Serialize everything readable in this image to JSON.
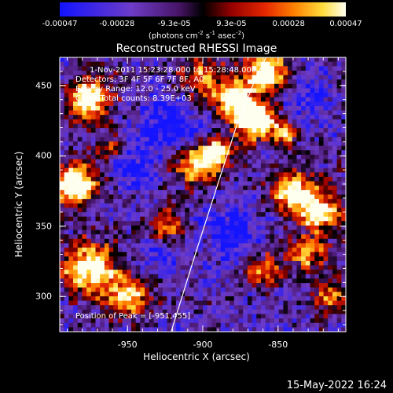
{
  "colorbar": {
    "ticks": [
      "-0.00047",
      "-0.00028",
      "-9.3e-05",
      "9.3e-05",
      "0.00028",
      "0.00047"
    ],
    "units_prefix": "(photons cm",
    "units_exp1": "-2",
    "units_mid": " s",
    "units_exp2": "-1",
    "units_mid2": " asec",
    "units_exp3": "-2",
    "units_suffix": ")"
  },
  "plot": {
    "title": "Reconstructed RHESSI Image",
    "info_lines": [
      "1-Nov-2011 15:23:28.000 to 15:28:48.000",
      "Detectors: 3F 4F 5F 6F 7F 8F, A0",
      "Energy Range: 12.0 - 25.0 keV",
      "Clean    Total counts: 8.39E+03"
    ],
    "peak_label": "Position of Peak = [-951,455]"
  },
  "chart_data": {
    "type": "heatmap",
    "title": "Reconstructed RHESSI Image",
    "xlabel": "Heliocentric X (arcsec)",
    "ylabel": "Heliocentric Y (arcsec)",
    "xlim": [
      -995,
      -805
    ],
    "ylim": [
      275,
      470
    ],
    "x_ticks": [
      "-950",
      "-900",
      "-850"
    ],
    "y_ticks": [
      "300",
      "350",
      "400",
      "450"
    ],
    "x_tick_values": [
      -950,
      -900,
      -850
    ],
    "y_tick_values": [
      300,
      350,
      400,
      450
    ],
    "colorbar_range": [
      -0.00047,
      0.00047
    ],
    "peak_position": [
      -951,
      455
    ],
    "limb_curve": [
      [
        -921,
        275
      ],
      [
        -905,
        330
      ],
      [
        -890,
        380
      ],
      [
        -878,
        420
      ],
      [
        -865,
        455
      ],
      [
        -858,
        470
      ]
    ]
  },
  "footer": {
    "date": "15-May-2022 16:24"
  }
}
